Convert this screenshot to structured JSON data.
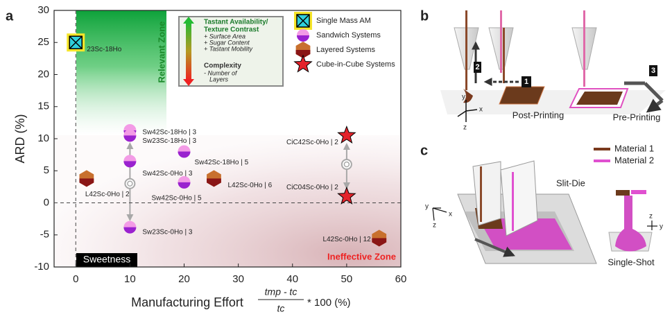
{
  "chart_data": {
    "type": "scatter",
    "panel_label": "a",
    "x_label": "Manufacturing Effort",
    "x_label_formula": {
      "numerator": "tmp - tc",
      "denominator": "tc",
      "suffix": "* 100 (%)"
    },
    "y_label": "ARD (%)",
    "xlim": [
      -4,
      60
    ],
    "xticks": [
      0,
      10,
      20,
      30,
      40,
      50,
      60
    ],
    "ylim": [
      -10,
      30
    ],
    "yticks": [
      -10,
      -5,
      0,
      5,
      10,
      15,
      20,
      25,
      30
    ],
    "grid": false,
    "legend_position": "upper right",
    "series": [
      {
        "name": "Single Mass AM",
        "marker": "square-x",
        "color": "#2fd0dc",
        "accent_color": "#f5e52a",
        "x": [
          0
        ],
        "values": [
          25
        ],
        "labels": [
          "23Sc-18Ho"
        ]
      },
      {
        "name": "Sandwich Systems",
        "marker": "split-circle",
        "color": "#f39be6",
        "accent_color": "#9a22cf",
        "x": [
          10,
          10,
          10,
          10,
          20,
          20
        ],
        "values": [
          11.3,
          10.5,
          6.5,
          -3.8,
          8,
          3.2
        ],
        "labels": [
          "Sw42Sc-18Ho | 3",
          "Sw23Sc-18Ho | 3",
          "Sw42Sc-0Ho | 3",
          "Sw23Sc-0Ho | 3",
          "Sw42Sc-18Ho | 5",
          "Sw42Sc-0Ho | 5"
        ]
      },
      {
        "name": "Layered Systems",
        "marker": "hexagon",
        "color": "#c8702e",
        "accent_color": "#8a1616",
        "x": [
          2,
          25.5,
          56
        ],
        "values": [
          3.8,
          3.8,
          -5.5
        ],
        "labels": [
          "L42Sc-0Ho | 2",
          "L42Sc-0Ho | 6",
          "L42Sc-0Ho | 12"
        ]
      },
      {
        "name": "Cube-in-Cube Systems",
        "marker": "star",
        "color": "#e4222a",
        "accent_color": "#000000",
        "x": [
          50,
          50
        ],
        "values": [
          10.5,
          1
        ],
        "labels": [
          "CiC42Sc-0Ho | 2",
          "CiC04Sc-0Ho | 2"
        ]
      },
      {
        "marker": "ring",
        "color": "#a8a8a8",
        "accent_color": "#a8a8a8",
        "x": [
          10,
          50
        ],
        "values": [
          3,
          6
        ]
      }
    ],
    "annotations": {
      "relevant_zone": "Relevant Zone",
      "ineffective_zone": "Ineffective Zone",
      "sweetness": "Sweetness",
      "contrast_title": [
        "Tastant Availability/",
        "Texture Contrast"
      ],
      "contrast_items": [
        "+ Surface Area",
        "+ Sugar Content",
        "+ Tastant Mobility"
      ],
      "complexity_title": "Complexity",
      "complexity_items": [
        "- Number of",
        "Layers"
      ]
    }
  },
  "panel_b": {
    "label": "b",
    "steps": [
      "1",
      "2",
      "3"
    ],
    "captions": [
      "Post-Printing",
      "Pre-Printing"
    ],
    "axes": [
      "y",
      "x",
      "z"
    ]
  },
  "panel_c": {
    "label": "c",
    "materials": [
      "Material 1",
      "Material 2"
    ],
    "captions": [
      "Slit-Die",
      "Single-Shot"
    ],
    "axes_left": [
      "y",
      "x",
      "z"
    ],
    "axes_right": [
      "z",
      "y"
    ]
  }
}
